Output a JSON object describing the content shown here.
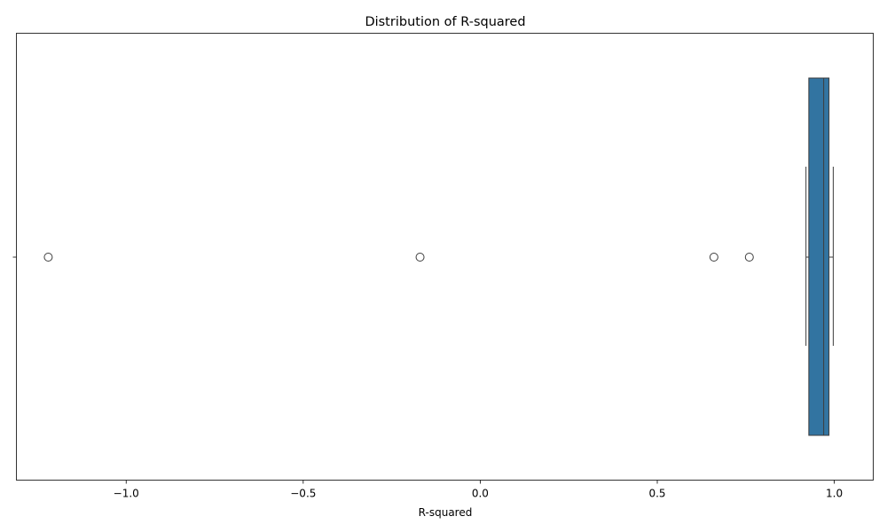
{
  "chart_data": {
    "type": "box",
    "orientation": "horizontal",
    "title": "Distribution of R-squared",
    "xlabel": "R-squared",
    "ylabel": "",
    "xlim": [
      -1.31,
      1.11
    ],
    "xticks": [
      -1.0,
      -0.5,
      0.0,
      0.5,
      1.0
    ],
    "xtick_labels": [
      "−1.0",
      "−0.5",
      "0.0",
      "0.5",
      "1.0"
    ],
    "yticks": [
      0
    ],
    "ytick_labels": [
      ""
    ],
    "grid": false,
    "box": {
      "whisker_low": 0.92,
      "q1": 0.928,
      "median": 0.97,
      "q3": 0.985,
      "whisker_high": 0.997,
      "outliers": [
        -1.22,
        -0.17,
        0.66,
        0.76
      ],
      "color": "#3274a1"
    }
  }
}
